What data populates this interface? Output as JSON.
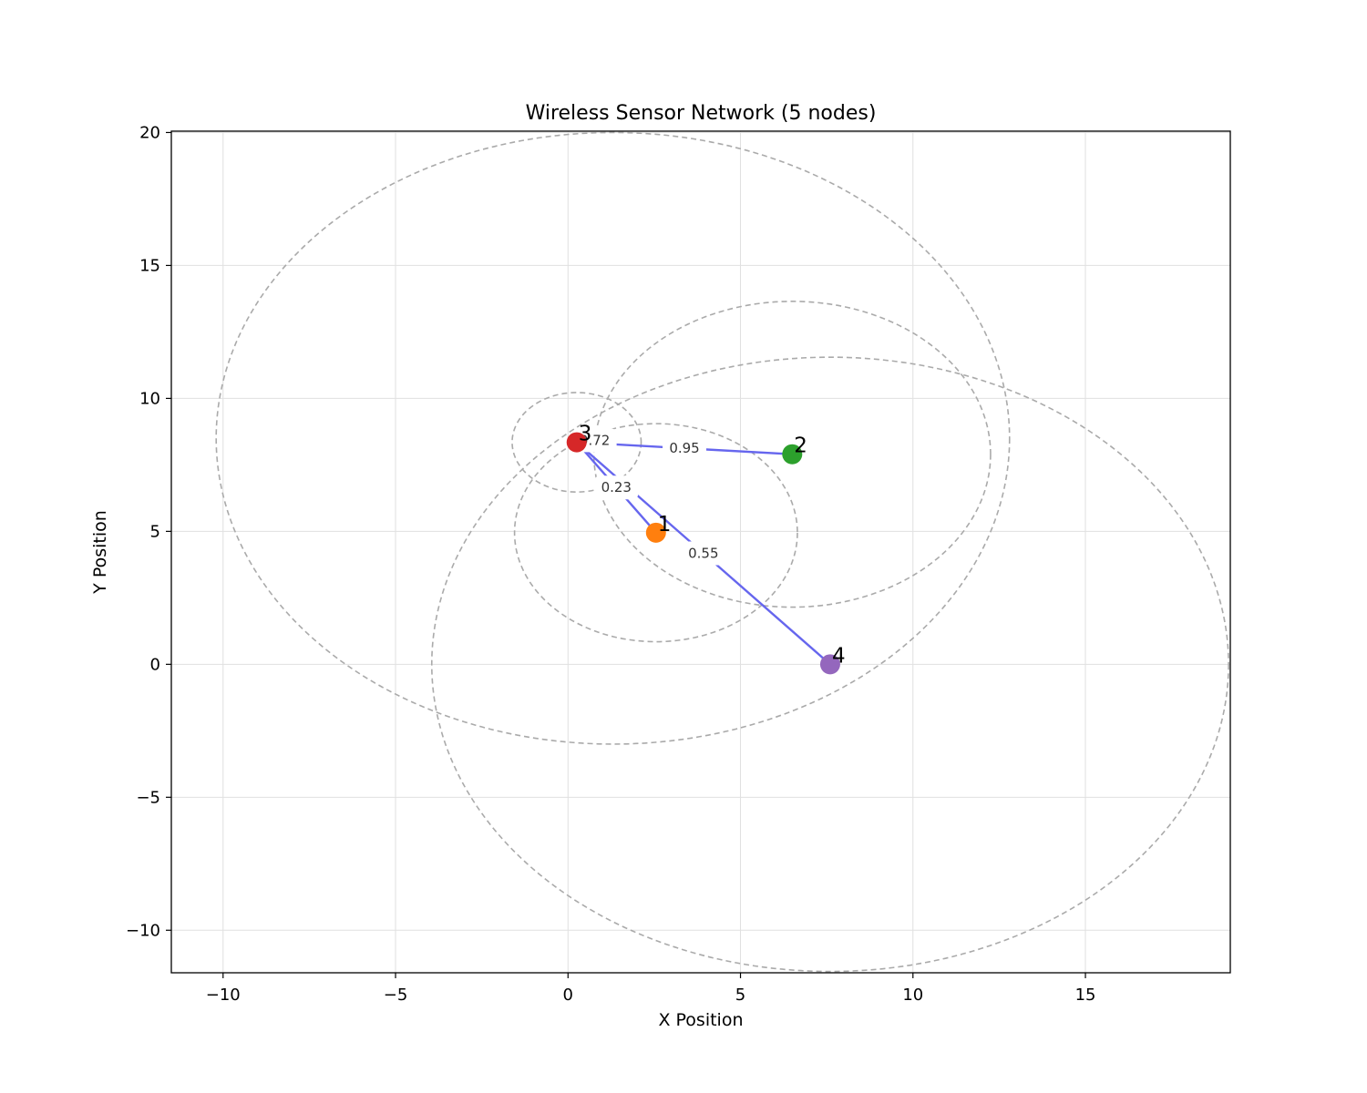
{
  "chart_data": {
    "type": "scatter",
    "title": "Wireless Sensor Network (5 nodes)",
    "xlabel": "X Position",
    "ylabel": "Y Position",
    "xlim": [
      -11.5,
      19.2
    ],
    "ylim": [
      -11.6,
      20.05
    ],
    "xticks": [
      -10,
      -5,
      0,
      5,
      10,
      15
    ],
    "yticks": [
      -10,
      -5,
      0,
      5,
      10,
      15,
      20
    ],
    "xtick_labels": [
      "−10",
      "−5",
      "0",
      "5",
      "10",
      "15"
    ],
    "ytick_labels": [
      "−10",
      "−5",
      "0",
      "5",
      "10",
      "15",
      "20"
    ],
    "grid": true,
    "nodes": [
      {
        "id": "0",
        "label": "",
        "x": 1.3,
        "y": 8.5,
        "range": 11.5,
        "color": "#1f77b4",
        "visible": false
      },
      {
        "id": "1",
        "label": "1",
        "x": 2.55,
        "y": 4.95,
        "range": 4.1,
        "color": "#ff7f0e",
        "visible": true
      },
      {
        "id": "2",
        "label": "2",
        "x": 6.5,
        "y": 7.9,
        "range": 5.75,
        "color": "#2ca02c",
        "visible": true
      },
      {
        "id": "3",
        "label": "3",
        "x": 0.25,
        "y": 8.35,
        "range": 1.87,
        "color": "#d62728",
        "visible": true
      },
      {
        "id": "4",
        "label": "4",
        "x": 7.6,
        "y": 0.0,
        "range": 11.55,
        "color": "#9467bd",
        "visible": true
      }
    ],
    "edges": [
      {
        "from": "3",
        "to": "1",
        "weight": "0.23"
      },
      {
        "from": "3",
        "to": "2",
        "weight": "0.95"
      },
      {
        "from": "3",
        "to": "4",
        "weight": "0.55"
      },
      {
        "from": "0",
        "to": "3",
        "weight": "0.72"
      }
    ],
    "edge_color": "#6666ee",
    "range_color": "#aaaaaa",
    "grid_color": "#e0e0e0"
  }
}
